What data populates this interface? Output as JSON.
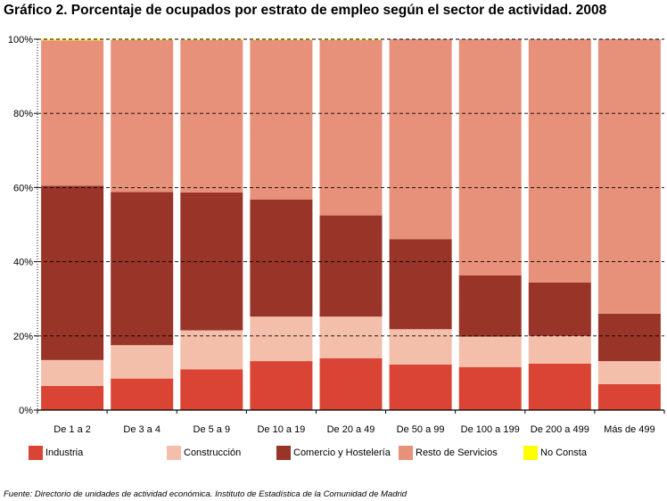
{
  "title": "Gráfico 2. Porcentaje de ocupados por estrato de empleo según el sector de actividad. 2008",
  "source": "Fuente: Directorio de unidades de actividad económica. Instituto de Estadística de la Comunidad de Madrid",
  "chart_data": {
    "type": "bar",
    "stacked": true,
    "orientation": "vertical",
    "title": "Gráfico 2. Porcentaje de ocupados por estrato de empleo según el sector de actividad. 2008",
    "categories": [
      "De 1 a 2",
      "De 3 a 4",
      "De 5 a 9",
      "De 10 a 19",
      "De 20 a 49",
      "De 50 a 99",
      "De 100 a 199",
      "De 200 a 499",
      "Más de 499"
    ],
    "ylim": [
      0,
      100
    ],
    "yticks": [
      "0%",
      "20%",
      "40%",
      "60%",
      "80%",
      "100%"
    ],
    "grid": true,
    "legend_position": "bottom",
    "series": [
      {
        "name": "Industria",
        "color": "#d94434",
        "values": [
          6.5,
          8.5,
          11,
          13.2,
          14,
          12.3,
          11.6,
          12.5,
          7
        ]
      },
      {
        "name": "Construcción",
        "color": "#f4bfaa",
        "values": [
          7,
          9,
          10.5,
          12,
          11.2,
          9.5,
          8.2,
          7.5,
          6.2
        ]
      },
      {
        "name": "Comercio y Hostelería",
        "color": "#993429",
        "values": [
          47,
          41.3,
          37.2,
          31.6,
          27.3,
          24.3,
          16.5,
          14.4,
          12.8
        ]
      },
      {
        "name": "Resto de Servicios",
        "color": "#e8917a",
        "values": [
          39.2,
          41,
          41.1,
          43,
          47.3,
          53.9,
          63.7,
          65.6,
          74
        ]
      },
      {
        "name": "No Consta",
        "color": "#ffff00",
        "values": [
          0.3,
          0.2,
          0.2,
          0.2,
          0.2,
          0,
          0,
          0,
          0
        ]
      }
    ]
  }
}
